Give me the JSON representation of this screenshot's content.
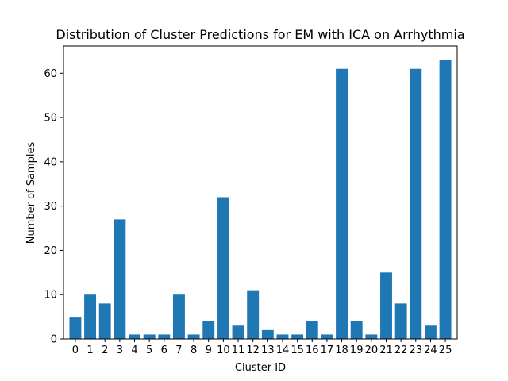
{
  "chart_data": {
    "type": "bar",
    "title": "Distribution of Cluster Predictions for EM with ICA on Arrhythmia",
    "xlabel": "Cluster ID",
    "ylabel": "Number of Samples",
    "categories": [
      "0",
      "1",
      "2",
      "3",
      "4",
      "5",
      "6",
      "7",
      "8",
      "9",
      "10",
      "11",
      "12",
      "13",
      "14",
      "15",
      "16",
      "17",
      "18",
      "19",
      "20",
      "21",
      "22",
      "23",
      "24",
      "25"
    ],
    "values": [
      5,
      10,
      8,
      27,
      1,
      1,
      1,
      10,
      1,
      4,
      32,
      3,
      11,
      2,
      1,
      1,
      4,
      1,
      61,
      4,
      1,
      15,
      8,
      61,
      3,
      63
    ],
    "ylim": [
      0,
      66.15
    ],
    "yticks": [
      0,
      10,
      20,
      30,
      40,
      50,
      60
    ],
    "grid": false,
    "colors": {
      "bar": "#1f77b4",
      "axes": "#000000",
      "background": "#ffffff"
    }
  }
}
